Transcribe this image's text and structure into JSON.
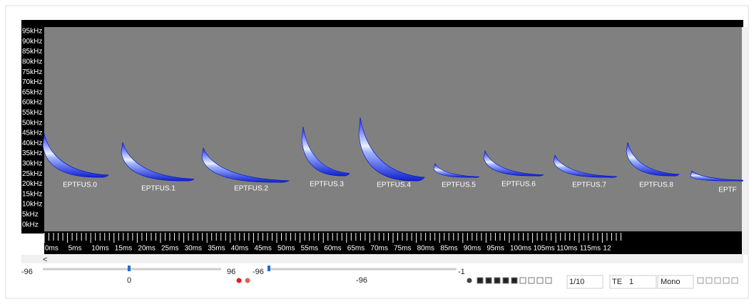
{
  "spectrogram": {
    "y_labels": [
      "95kHz",
      "90kHz",
      "85kHz",
      "80kHz",
      "75kHz",
      "70kHz",
      "65kHz",
      "60kHz",
      "55kHz",
      "50kHz",
      "45kHz",
      "40kHz",
      "35kHz",
      "30kHz",
      "25kHz",
      "20kHz",
      "15kHz",
      "10kHz",
      "5kHz",
      "0kHz"
    ],
    "x_labels": [
      "0ms",
      "5ms",
      "10ms",
      "15ms",
      "20ms",
      "25ms",
      "30ms",
      "35ms",
      "40ms",
      "45ms",
      "50ms",
      "55ms",
      "60ms",
      "65ms",
      "70ms",
      "75ms",
      "80ms",
      "85ms",
      "90ms",
      "95ms",
      "100ms",
      "105ms",
      "110ms",
      "115ms",
      "12"
    ],
    "calls": [
      "EPTFUS.0",
      "EPTFUS.1",
      "EPTFUS.2",
      "EPTFUS.3",
      "EPTFUS.4",
      "EPTFUS.5",
      "EPTFUS.6",
      "EPTFUS.7",
      "EPTFUS.8",
      "EPTF"
    ]
  },
  "controls": {
    "scroll_left": "<",
    "slider1_min": "-96",
    "slider1_value": "0",
    "slider1_max": "96",
    "slider2_min": "-96",
    "slider2_value": "-96",
    "slider2_max": "-1",
    "speed": "1/10",
    "mode": "TE",
    "channel": "1",
    "output": "Mono"
  }
}
